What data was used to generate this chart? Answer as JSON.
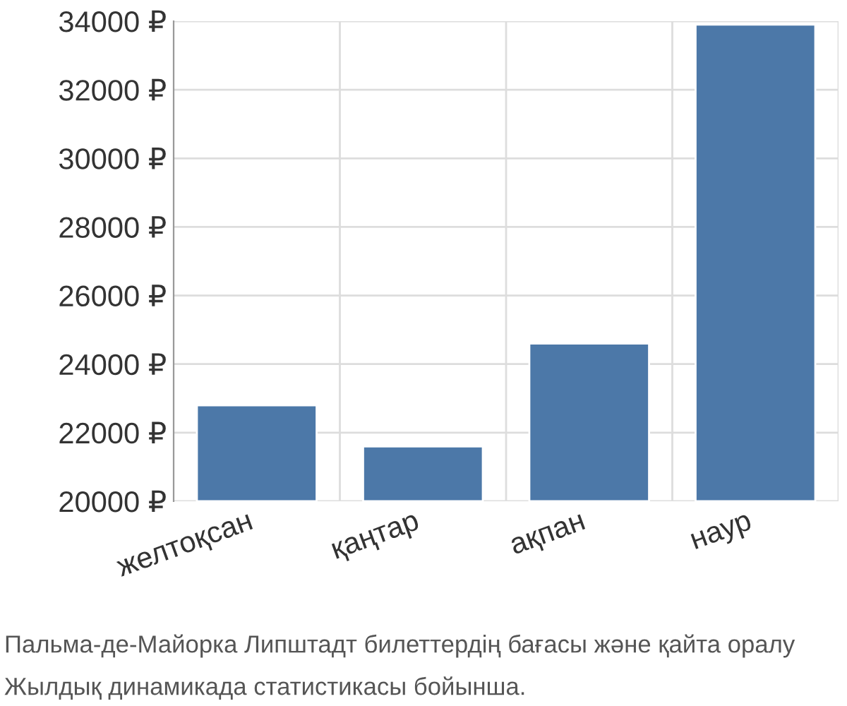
{
  "chart_data": {
    "type": "bar",
    "categories": [
      "желтоқсан",
      "қаңтар",
      "ақпан",
      "наур"
    ],
    "values": [
      22800,
      21600,
      24600,
      33900
    ],
    "color": "#4c78a8",
    "ylim": [
      20000,
      34000
    ],
    "yticks": [
      {
        "value": 20000,
        "label": "20000 ₽"
      },
      {
        "value": 22000,
        "label": "22000 ₽"
      },
      {
        "value": 24000,
        "label": "24000 ₽"
      },
      {
        "value": 26000,
        "label": "26000 ₽"
      },
      {
        "value": 28000,
        "label": "28000 ₽"
      },
      {
        "value": 30000,
        "label": "30000 ₽"
      },
      {
        "value": 32000,
        "label": "32000 ₽"
      },
      {
        "value": 34000,
        "label": "34000 ₽"
      }
    ],
    "grid": true,
    "annotations": [
      "Пальма-де-Майорка Липштадт билеттердің бағасы және қайта оралу",
      "Жылдық динамикада статистикасы бойынша."
    ]
  }
}
